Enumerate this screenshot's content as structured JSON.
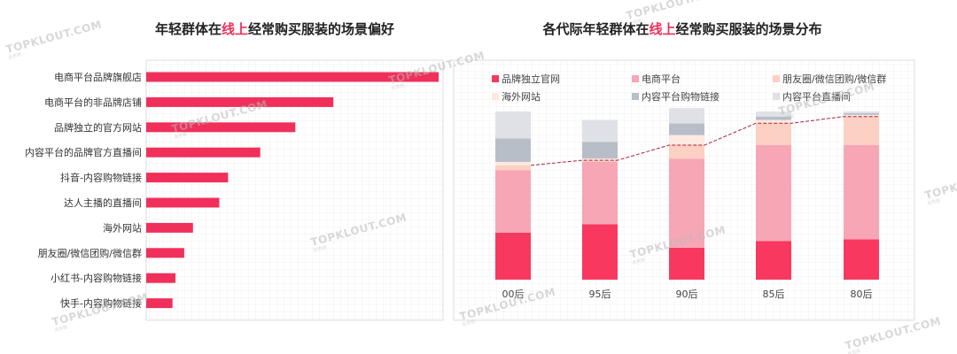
{
  "left_title": {
    "pre": "年轻群体在",
    "highlight": "线上",
    "post": "经常购买服装的场景偏好"
  },
  "right_title": {
    "pre": "各代际年轻群体在",
    "highlight": "线上",
    "post": "经常购买服装的场景分布"
  },
  "watermark": {
    "text": "TOPKLOUT.COM",
    "sub": "克劳锐"
  },
  "colors": {
    "accent": "#f0305a",
    "grid": "#e6e6e6",
    "series": [
      "#f8385f",
      "#f7a6b6",
      "#fcd0c2",
      "#fde8e2",
      "#b8bec8",
      "#dfe1e6"
    ]
  },
  "chart_data": [
    {
      "type": "bar",
      "orientation": "horizontal",
      "title": "年轻群体在线上经常购买服装的场景偏好",
      "categories": [
        "电商平台品牌旗舰店",
        "电商平台的非品牌店铺",
        "品牌独立的官方网站",
        "内容平台的品牌官方直播间",
        "抖音-内容购物链接",
        "达人主播的直播间",
        "海外网站",
        "朋友圈/微信团购/微信群",
        "小红书-内容购物链接",
        "快手-内容购物链接"
      ],
      "values": [
        100,
        64,
        51,
        39,
        28,
        25,
        16,
        13,
        10,
        9
      ],
      "grid": true
    },
    {
      "type": "bar",
      "stacked": true,
      "title": "各代际年轻群体在线上经常购买服装的场景分布",
      "categories": [
        "00后",
        "95后",
        "90后",
        "85后",
        "80后"
      ],
      "series": [
        {
          "name": "品牌独立官网",
          "values": [
            28,
            33,
            19,
            23,
            24
          ]
        },
        {
          "name": "电商平台",
          "values": [
            37,
            37,
            53,
            57,
            56
          ]
        },
        {
          "name": "朋友圈/微信团购/微信群",
          "values": [
            3,
            1,
            8,
            13,
            17
          ]
        },
        {
          "name": "海外网站",
          "values": [
            2,
            1,
            6,
            2,
            1
          ]
        },
        {
          "name": "内容平台购物链接",
          "values": [
            14,
            10,
            7,
            2,
            1
          ]
        },
        {
          "name": "内容平台直播间",
          "values": [
            16,
            13,
            9,
            3,
            1
          ]
        }
      ],
      "ylim": [
        0,
        100
      ],
      "legend": "top",
      "grid": true,
      "trend_line": "dashed"
    }
  ]
}
